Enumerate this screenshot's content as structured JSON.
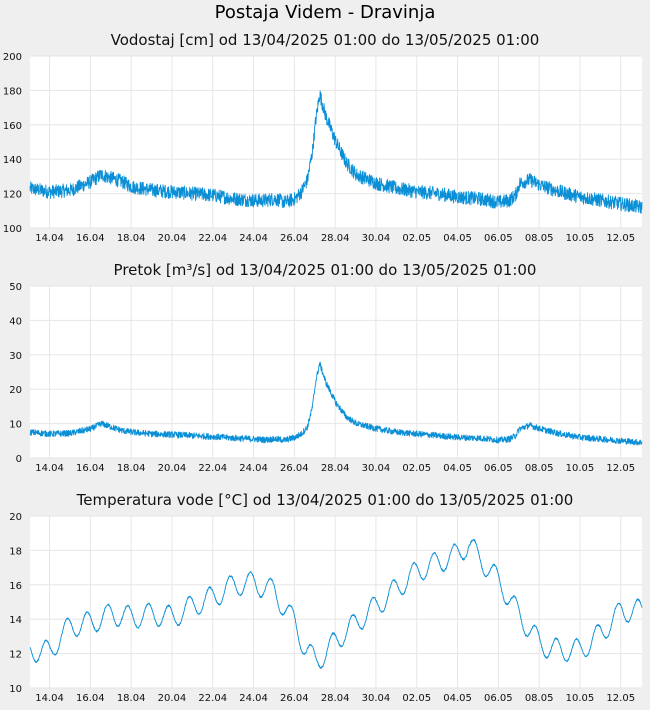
{
  "page": {
    "title": "Postaja Videm - Dravinja"
  },
  "colors": {
    "line": "#0a8fd6",
    "plot_bg": "#ffffff",
    "grid": "#e6e6e6",
    "page_bg": "#efefef"
  },
  "chart_data": [
    {
      "type": "line",
      "title": "Vodostaj [cm] od 13/04/2025 01:00 do 13/05/2025 01:00",
      "x_ticks": [
        "14.04",
        "16.04",
        "18.04",
        "20.04",
        "22.04",
        "24.04",
        "26.04",
        "28.04",
        "30.04",
        "02.05",
        "04.05",
        "06.05",
        "08.05",
        "10.05",
        "12.05"
      ],
      "y_ticks": [
        "100",
        "120",
        "140",
        "160",
        "180",
        "200"
      ],
      "ylim": [
        100,
        200
      ],
      "grid": true,
      "noise": 4,
      "series": [
        {
          "x": [
            0,
            1,
            2,
            3,
            3.5,
            4,
            4.5,
            5,
            6,
            7,
            8,
            9,
            10,
            11,
            11.5,
            12,
            12.5,
            13,
            13.3,
            13.6,
            13.85,
            14,
            14.2,
            14.5,
            15,
            15.5,
            16,
            17,
            18,
            19,
            20,
            21,
            22,
            22.5,
            23,
            23.5,
            23.8,
            24,
            24.5,
            25,
            26,
            27,
            28,
            29,
            30
          ],
          "values": [
            123,
            121,
            122,
            127,
            131,
            129,
            127,
            124,
            122,
            121,
            120,
            119,
            117,
            116,
            116,
            117,
            115,
            117,
            121,
            128,
            145,
            162,
            178,
            165,
            150,
            138,
            131,
            126,
            123,
            121,
            120,
            118,
            117,
            116,
            115,
            116,
            119,
            126,
            128,
            125,
            121,
            118,
            116,
            114,
            112
          ]
        }
      ]
    },
    {
      "type": "line",
      "title": "Pretok [m³/s] od 13/04/2025 01:00 do 13/05/2025 01:00",
      "x_ticks": [
        "14.04",
        "16.04",
        "18.04",
        "20.04",
        "22.04",
        "24.04",
        "26.04",
        "28.04",
        "30.04",
        "02.05",
        "04.05",
        "06.05",
        "08.05",
        "10.05",
        "12.05"
      ],
      "y_ticks": [
        "0",
        "10",
        "20",
        "30",
        "40",
        "50"
      ],
      "ylim": [
        0,
        50
      ],
      "grid": true,
      "noise": 0.9,
      "series": [
        {
          "x": [
            0,
            1,
            2,
            3,
            3.5,
            4,
            4.5,
            5,
            6,
            7,
            8,
            9,
            10,
            11,
            11.5,
            12,
            12.5,
            13,
            13.3,
            13.6,
            13.85,
            14,
            14.2,
            14.5,
            15,
            15.5,
            16,
            17,
            18,
            19,
            20,
            21,
            22,
            22.5,
            23,
            23.5,
            23.8,
            24,
            24.5,
            25,
            26,
            27,
            28,
            29,
            30
          ],
          "values": [
            7.5,
            7,
            7.2,
            8.5,
            10,
            9,
            8,
            7.5,
            7,
            6.8,
            6.5,
            6.2,
            5.8,
            5.5,
            5.3,
            5.5,
            5.2,
            6,
            7,
            9,
            15,
            22,
            27.5,
            22,
            16,
            12,
            10,
            8.5,
            7.5,
            7,
            6.5,
            6,
            5.8,
            5.5,
            5.2,
            5.5,
            6.5,
            8.5,
            9.5,
            8.5,
            7,
            6,
            5.5,
            5,
            4.5
          ]
        }
      ]
    },
    {
      "type": "line",
      "title": "Temperatura vode [°C] od 13/04/2025 01:00 do 13/05/2025 01:00",
      "x_ticks": [
        "14.04",
        "16.04",
        "18.04",
        "20.04",
        "22.04",
        "24.04",
        "26.04",
        "28.04",
        "30.04",
        "02.05",
        "04.05",
        "06.05",
        "08.05",
        "10.05",
        "12.05"
      ],
      "y_ticks": [
        "10",
        "12",
        "14",
        "16",
        "18",
        "20"
      ],
      "ylim": [
        10,
        20
      ],
      "grid": true,
      "noise": 0.05,
      "diurnal": 0.65,
      "series": [
        {
          "x": [
            0,
            1,
            1.5,
            2,
            3,
            4,
            5,
            6,
            7,
            8,
            9,
            10,
            11,
            12,
            12.5,
            13,
            13.5,
            14,
            14.5,
            15,
            16,
            17,
            18,
            19,
            20,
            21,
            21.5,
            22,
            23,
            24,
            25,
            25.5,
            26,
            27,
            28,
            29,
            30
          ],
          "values": [
            12.2,
            12.1,
            13,
            13.6,
            13.8,
            14.3,
            14.1,
            14.3,
            14.1,
            14.8,
            15.3,
            16,
            16.1,
            15.6,
            14.6,
            13.8,
            12.2,
            11.6,
            12,
            12.8,
            13.8,
            14.8,
            15.8,
            16.8,
            17.3,
            17.8,
            18.4,
            17.6,
            16.2,
            14.2,
            12.6,
            12.3,
            12.2,
            12.2,
            13.2,
            14.5,
            14.5
          ]
        }
      ]
    }
  ]
}
